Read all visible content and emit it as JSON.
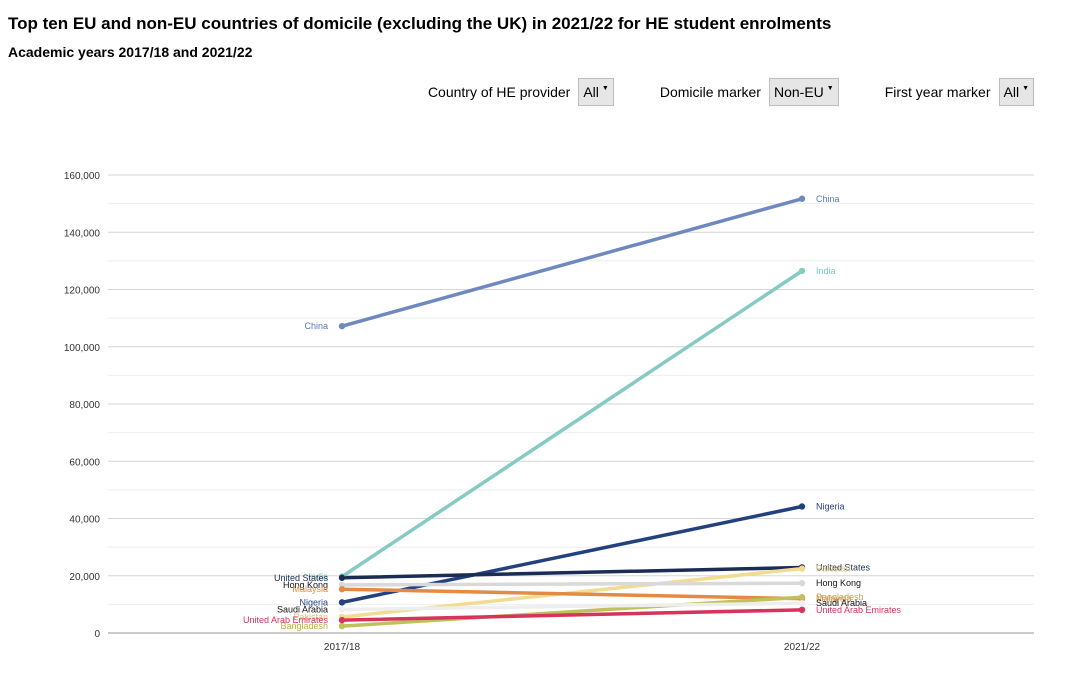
{
  "title": "Top ten EU and non-EU countries of domicile (excluding the UK) in 2021/22 for HE student enrolments",
  "subtitle": "Academic years 2017/18 and 2021/22",
  "filters": [
    {
      "label": "Country of HE provider",
      "value": "All"
    },
    {
      "label": "Domicile marker",
      "value": "Non-EU"
    },
    {
      "label": "First year marker",
      "value": "All"
    }
  ],
  "chart_data": {
    "type": "line",
    "x": [
      "2017/18",
      "2021/22"
    ],
    "ylim": [
      0,
      160000
    ],
    "yticks": [
      0,
      20000,
      40000,
      60000,
      80000,
      100000,
      120000,
      140000,
      160000
    ],
    "ytick_labels": [
      "0",
      "20,000",
      "40,000",
      "60,000",
      "80,000",
      "100,000",
      "120,000",
      "140,000",
      "160,000"
    ],
    "grid": true,
    "series": [
      {
        "name": "China",
        "values": [
          107200,
          151700
        ],
        "color": "#6f88bf",
        "label_color": "#5a78b5"
      },
      {
        "name": "India",
        "values": [
          19700,
          126500
        ],
        "color": "#86cbc2",
        "label_color": "#76c3b8"
      },
      {
        "name": "Nigeria",
        "values": [
          10700,
          44200
        ],
        "color": "#24417f",
        "label_color": "#24417f"
      },
      {
        "name": "United States",
        "values": [
          19300,
          22900
        ],
        "color": "#1b2d55",
        "label_color": "#1b2d55"
      },
      {
        "name": "Pakistan",
        "values": [
          5600,
          22500
        ],
        "color": "#f2dc8f",
        "label_color": "#d9c173"
      },
      {
        "name": "Hong Kong",
        "values": [
          16800,
          17400
        ],
        "color": "#d9d9d9",
        "label_color": "#111111"
      },
      {
        "name": "Malaysia",
        "values": [
          15300,
          12000
        ],
        "color": "#e58a44",
        "label_color": "#e58a44"
      },
      {
        "name": "Bangladesh",
        "values": [
          2400,
          12500
        ],
        "color": "#bfc15a",
        "label_color": "#b9b23d"
      },
      {
        "name": "Saudi Arabia",
        "values": [
          8200,
          10400
        ],
        "color": "#eeeeee",
        "label_color": "#111111"
      },
      {
        "name": "United Arab Emirates",
        "values": [
          4500,
          8100
        ],
        "color": "#d6335d",
        "label_color": "#d6335d"
      }
    ]
  }
}
